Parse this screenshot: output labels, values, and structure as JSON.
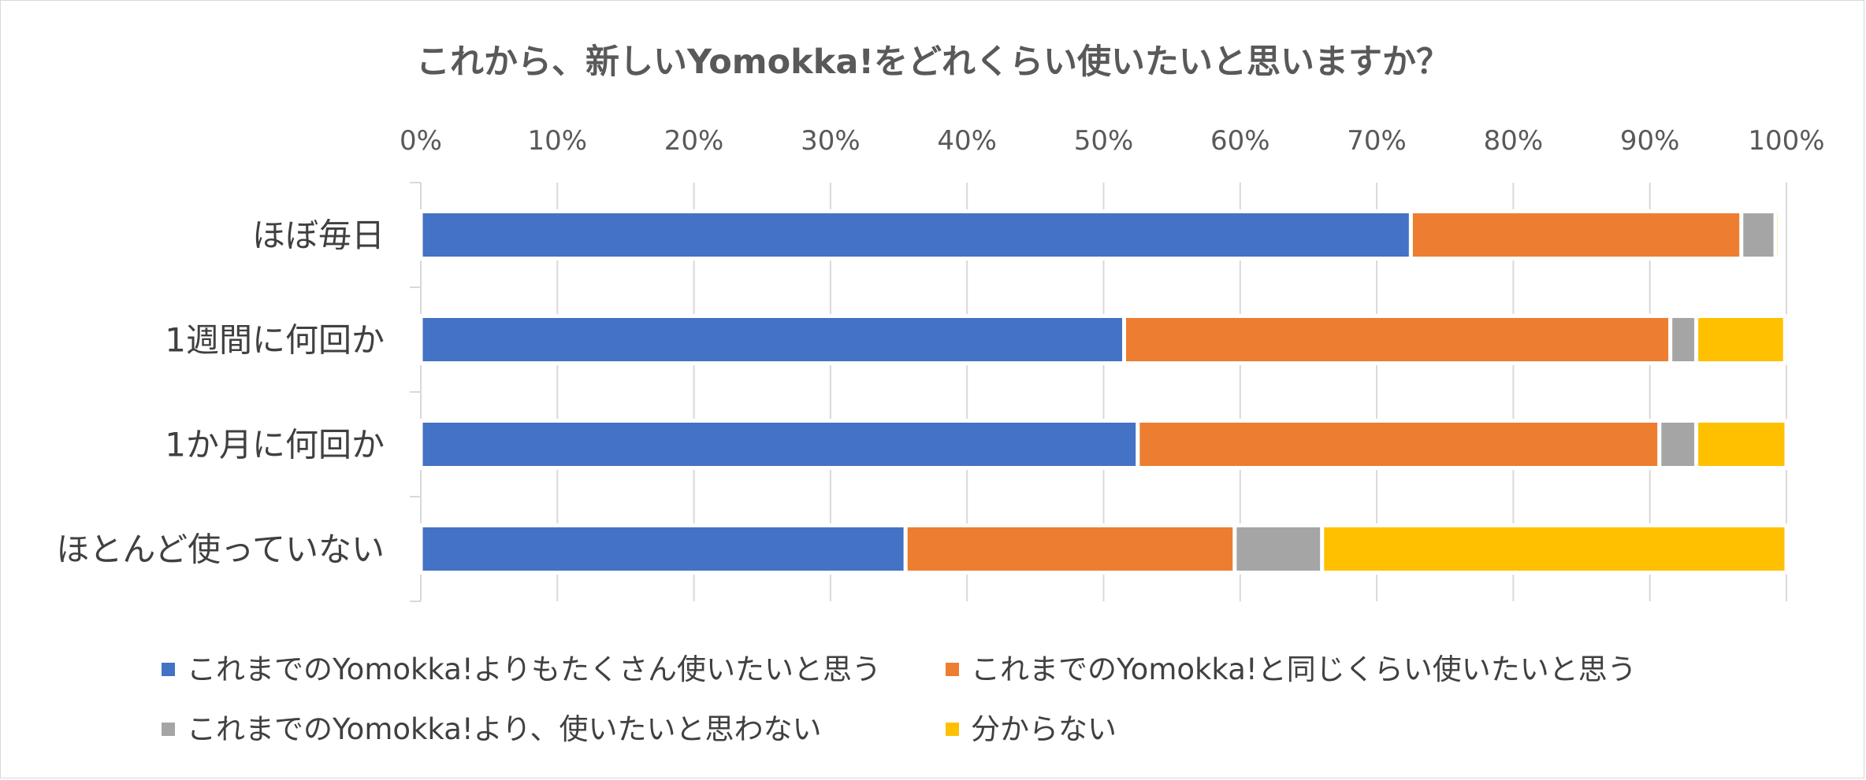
{
  "chart_data": {
    "type": "bar",
    "orientation": "horizontal",
    "stacked": "100%",
    "title": "これから、新しいYomokka!をどれくらい使いたいと思いますか？",
    "categories": [
      "ほぼ毎日",
      "1週間に何回か",
      "1か月に何回か",
      "ほとんど使っていない"
    ],
    "series": [
      {
        "name": "これまでのYomokka!よりもたくさん使いたいと思う",
        "color": "#4472C4",
        "values": [
          72.5,
          51.5,
          52.5,
          35.5
        ]
      },
      {
        "name": "これまでのYomokka!と同じくらい使いたいと思う",
        "color": "#ED7D31",
        "values": [
          24.2,
          40.0,
          38.2,
          24.1
        ]
      },
      {
        "name": "これまでのYomokka!より、使いたいと思わない",
        "color": "#A5A5A5",
        "values": [
          2.5,
          1.9,
          2.7,
          6.4
        ]
      },
      {
        "name": "分からない",
        "color": "#FFC000",
        "values": [
          0.3,
          6.5,
          6.6,
          34.0
        ]
      }
    ],
    "x_ticks": [
      "0%",
      "10%",
      "20%",
      "30%",
      "40%",
      "50%",
      "60%",
      "70%",
      "80%",
      "90%",
      "100%"
    ],
    "xlim": [
      0,
      100
    ],
    "grid": true,
    "legend_position": "bottom"
  }
}
